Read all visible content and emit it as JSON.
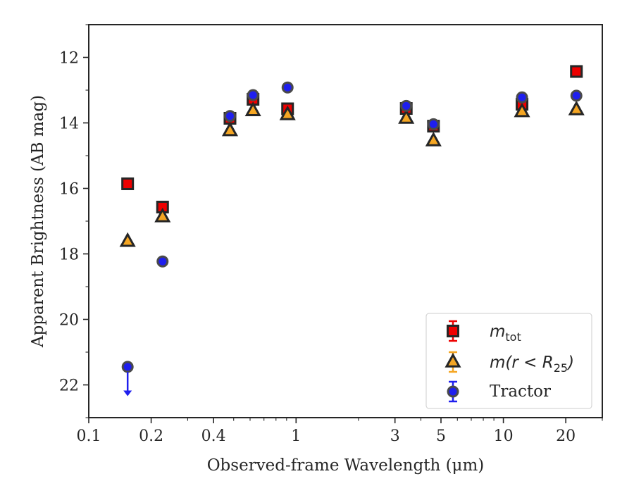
{
  "chart_data": {
    "type": "scatter",
    "xlabel": "Observed-frame Wavelength (μm)",
    "ylabel": "Apparent Brightness (AB mag)",
    "x_scale": "log",
    "xlim": [
      0.1,
      30
    ],
    "ylim": [
      23,
      11
    ],
    "y_inverted": true,
    "x_ticks": [
      0.1,
      0.2,
      0.4,
      1,
      3,
      5,
      10,
      20
    ],
    "x_tick_labels": [
      "0.1",
      "0.2",
      "0.4",
      "1",
      "3",
      "5",
      "10",
      "20"
    ],
    "y_ticks": [
      12,
      14,
      16,
      18,
      20,
      22
    ],
    "y_tick_labels": [
      "12",
      "14",
      "16",
      "18",
      "20",
      "22"
    ],
    "grid": false,
    "legend_position": "lower-right",
    "series": [
      {
        "name": "m_tot",
        "legend_main": "m",
        "legend_sub": "tot",
        "marker": "square",
        "color": "#ee0000",
        "x": [
          0.154,
          0.227,
          0.48,
          0.62,
          0.91,
          3.4,
          4.6,
          12.3,
          22.5
        ],
        "y": [
          15.86,
          16.57,
          13.86,
          13.28,
          13.57,
          13.56,
          14.1,
          13.43,
          12.43
        ]
      },
      {
        "name": "m(r < R_25)",
        "legend_main": "m(r < R",
        "legend_sub": "25",
        "legend_tail": ")",
        "marker": "triangle",
        "color": "#f5a623",
        "x": [
          0.154,
          0.227,
          0.48,
          0.62,
          0.91,
          3.4,
          4.6,
          12.3,
          22.5
        ],
        "y": [
          17.62,
          16.87,
          14.24,
          13.63,
          13.75,
          13.86,
          14.55,
          13.66,
          13.6
        ]
      },
      {
        "name": "Tractor",
        "marker": "circle",
        "color": "#1f1fee",
        "x": [
          0.154,
          0.227,
          0.48,
          0.62,
          0.91,
          3.4,
          4.6,
          12.3,
          22.5
        ],
        "y": [
          21.45,
          18.23,
          13.79,
          13.15,
          12.92,
          13.48,
          14.04,
          13.22,
          13.17
        ],
        "upper_limit_index": 0
      }
    ]
  }
}
